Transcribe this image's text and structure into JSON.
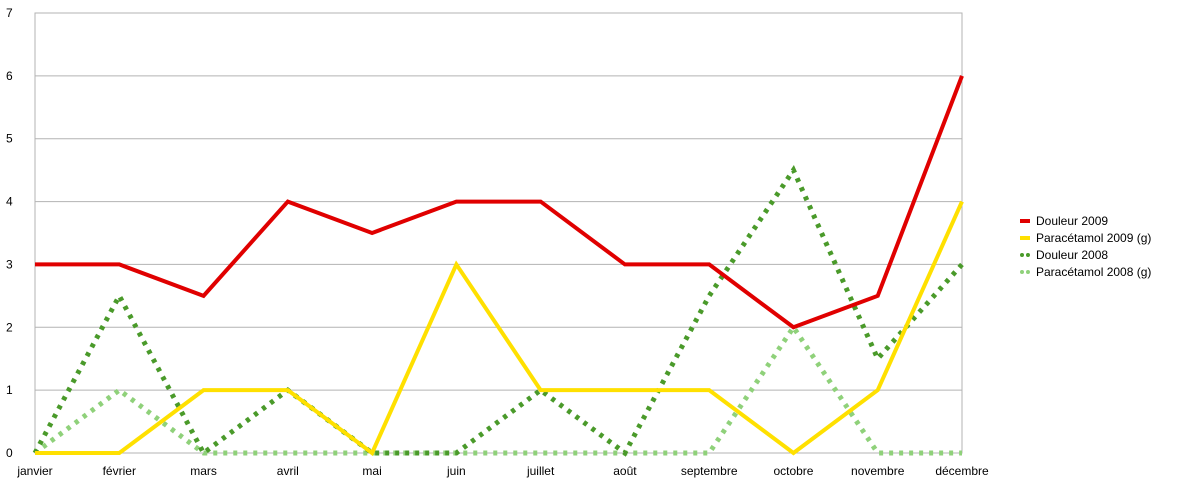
{
  "chart_data": {
    "type": "line",
    "title": "",
    "xlabel": "",
    "ylabel": "",
    "ylim": [
      0,
      7
    ],
    "yticks": [
      0,
      1,
      2,
      3,
      4,
      5,
      6,
      7
    ],
    "grid": true,
    "legend_position": "right",
    "categories": [
      "janvier",
      "février",
      "mars",
      "avril",
      "mai",
      "juin",
      "juillet",
      "août",
      "septembre",
      "octobre",
      "novembre",
      "décembre"
    ],
    "series": [
      {
        "name": "Douleur  2009",
        "color": "#e00000",
        "style": "solid",
        "values": [
          3,
          3,
          2.5,
          4,
          3.5,
          4,
          4,
          3,
          3,
          2,
          2.5,
          6
        ]
      },
      {
        "name": "Paracétamol 2009 (g)",
        "color": "#ffe000",
        "style": "solid",
        "values": [
          0,
          0,
          1,
          1,
          0,
          3,
          1,
          1,
          1,
          0,
          1,
          4
        ]
      },
      {
        "name": "Douleur  2008",
        "color": "#4a9a2a",
        "style": "dotted",
        "values": [
          0,
          2.5,
          0,
          1,
          0,
          0,
          1,
          0,
          2.5,
          4.5,
          1.5,
          3
        ]
      },
      {
        "name": "Paracétamol 2008 (g)",
        "color": "#8fd17a",
        "style": "dotted",
        "values": [
          0,
          1,
          0,
          0,
          0,
          0,
          0,
          0,
          0,
          2,
          0,
          0
        ]
      }
    ]
  }
}
